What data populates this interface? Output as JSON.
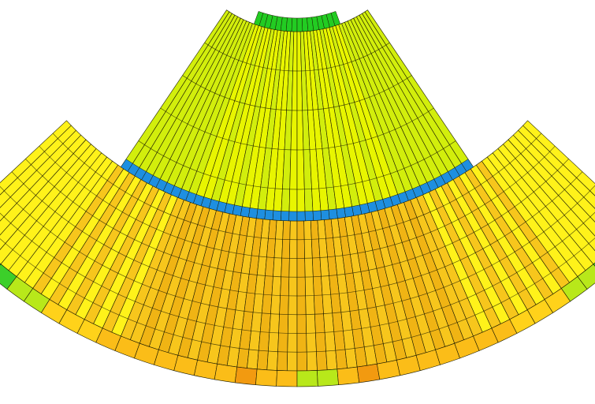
{
  "figure": {
    "kind": "fan-shaped segmented mesh (color-mapped field)",
    "colors": {
      "background": "#ffffff",
      "outline": "#1a1a00",
      "upper_fill_a": "#e8f500",
      "upper_fill_b": "#d2ee0c",
      "upper_hub": "#22cc22",
      "separator_band": "#1e8fe0",
      "lower_fill_a": "#fff21a",
      "lower_fill_b": "#f7c61c",
      "lower_center": "#f0b414",
      "rim_cyan": "#2ee8e0",
      "rim_green": "#3ccf2a",
      "rim_yellow_green": "#b8e81a",
      "rim_orange": "#f29a10",
      "rim_yellow": "#ffd21a"
    },
    "layers": [
      {
        "name": "upper-fan",
        "segments": 46,
        "rings": 6
      },
      {
        "name": "separator-band",
        "segments": 46
      },
      {
        "name": "lower-fan",
        "segments": 76,
        "rings": 8
      },
      {
        "name": "outer-rim",
        "segments": 38
      }
    ]
  }
}
